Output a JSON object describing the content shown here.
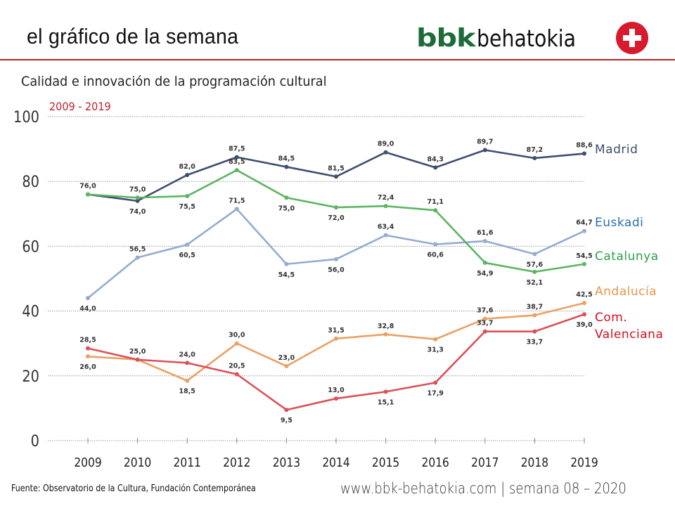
{
  "header": {
    "title": "el gráfico de la semana",
    "logo_brand": "bbk",
    "logo_name": "behatokia",
    "logo_icon": "plus-circle-icon"
  },
  "colors": {
    "accent_rule": "#b3262d",
    "subtitle": "#c0202a",
    "logo_green": "#1e6b3a",
    "logo_red": "#d71a2e"
  },
  "chart_data": {
    "type": "line",
    "title": "Calidad e innovación de la programación cultural",
    "subtitle": "2009 - 2019",
    "xlabel": "",
    "ylabel": "",
    "ylim": [
      0,
      100
    ],
    "yticks": [
      0,
      20,
      40,
      60,
      80,
      100
    ],
    "grid": true,
    "legend": "right (labels at line ends)",
    "categories": [
      "2009",
      "2010",
      "2011",
      "2012",
      "2013",
      "2014",
      "2015",
      "2016",
      "2017",
      "2018",
      "2019"
    ],
    "series": [
      {
        "name": "Madrid",
        "color": "#3e4f6e",
        "label_color": "#3e4f6e",
        "values": [
          76.0,
          74.0,
          82.0,
          87.5,
          84.5,
          81.5,
          89.0,
          84.3,
          89.7,
          87.2,
          88.6
        ],
        "labels": [
          "76,0",
          "74,0",
          "82,0",
          "87,5",
          "84,5",
          "81,5",
          "89,0",
          "84,3",
          "89,7",
          "87,2",
          "88,6"
        ],
        "label_pos": [
          "above",
          "below",
          "above",
          "above",
          "above",
          "above",
          "above",
          "above",
          "above",
          "above",
          "above"
        ]
      },
      {
        "name": "Euskadi",
        "color": "#94acd0",
        "label_color": "#2a6fb0",
        "values": [
          44.0,
          56.5,
          60.5,
          71.5,
          54.5,
          56.0,
          63.4,
          60.6,
          61.6,
          57.6,
          64.7
        ],
        "labels": [
          "44,0",
          "56,5",
          "60,5",
          "71,5",
          "54,5",
          "56,0",
          "63,4",
          "60,6",
          "61,6",
          "57,6",
          "64,7"
        ],
        "label_pos": [
          "below",
          "above",
          "below",
          "above",
          "below",
          "below",
          "above",
          "below",
          "above",
          "below",
          "above"
        ]
      },
      {
        "name": "Catalunya",
        "color": "#5cb562",
        "label_color": "#2f9e4a",
        "values": [
          76.0,
          75.0,
          75.5,
          83.5,
          75.0,
          72.0,
          72.4,
          71.1,
          54.9,
          52.1,
          54.5
        ],
        "labels": [
          "",
          "75,0",
          "75,5",
          "83,5",
          "75,0",
          "72,0",
          "72,4",
          "71,1",
          "54,9",
          "52,1",
          "54,5"
        ],
        "label_pos": [
          "none",
          "above",
          "below",
          "above",
          "below",
          "below",
          "above",
          "above",
          "below",
          "below",
          "above"
        ]
      },
      {
        "name": "Andalucía",
        "color": "#eba064",
        "label_color": "#e8974a",
        "values": [
          26.0,
          25.0,
          18.5,
          30.0,
          23.0,
          31.5,
          32.8,
          31.3,
          37.6,
          38.7,
          42.5
        ],
        "labels": [
          "26,0",
          "",
          "18,5",
          "30,0",
          "23,0",
          "31,5",
          "32,8",
          "31,3",
          "37,6",
          "38,7",
          "42,5"
        ],
        "label_pos": [
          "below",
          "none",
          "below",
          "above",
          "above",
          "above",
          "above",
          "below",
          "above",
          "above",
          "above"
        ]
      },
      {
        "name": "Com. Valenciana",
        "name_lines": [
          "Com.",
          "Valenciana"
        ],
        "color": "#dc5058",
        "label_color": "#d0101e",
        "values": [
          28.5,
          25.0,
          24.0,
          20.5,
          9.5,
          13.0,
          15.1,
          17.9,
          33.7,
          33.7,
          39.0
        ],
        "labels": [
          "28,5",
          "25,0",
          "24,0",
          "20,5",
          "9,5",
          "13,0",
          "15,1",
          "17,9",
          "33,7",
          "33,7",
          "39,0"
        ],
        "label_pos": [
          "above",
          "above",
          "above",
          "above",
          "below",
          "above",
          "below",
          "below",
          "above",
          "below",
          "below"
        ]
      }
    ]
  },
  "footer": {
    "source": "Fuente:  Observatorio de la Cultura, Fundación Contemporánea",
    "url": "www.bbk-behatokia.com | semana 08 – 2020"
  }
}
